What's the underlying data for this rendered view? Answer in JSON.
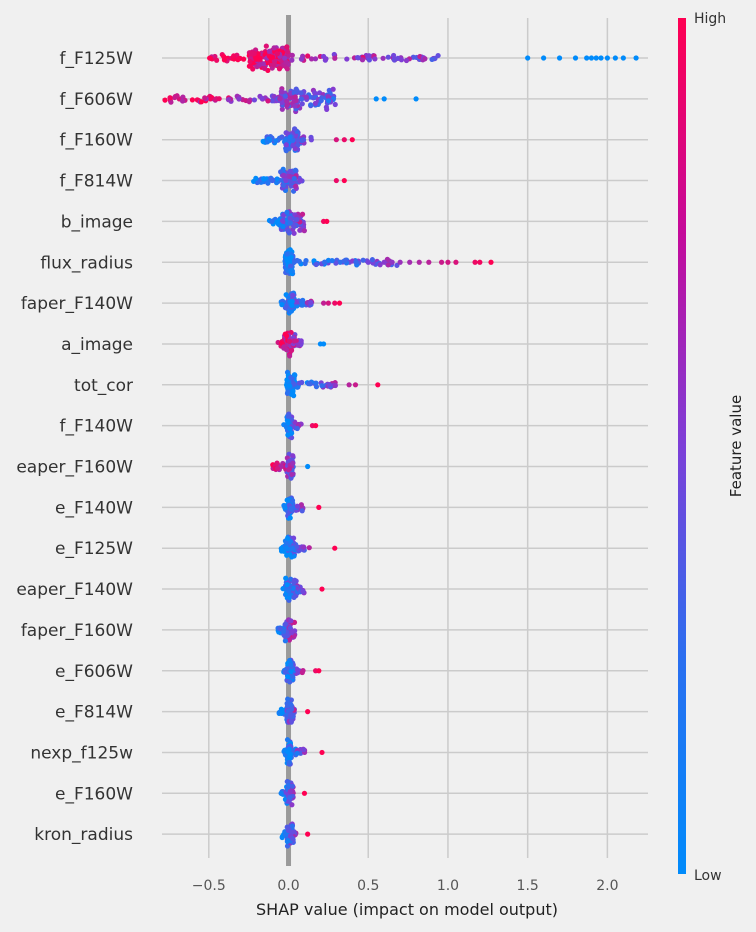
{
  "chart_data": {
    "type": "scatter",
    "subtype": "shap-beeswarm",
    "title": "",
    "xlabel": "SHAP value (impact on model output)",
    "ylabel": "",
    "xlim": [
      -0.85,
      2.33
    ],
    "xticks": [
      -0.5,
      0.0,
      0.5,
      1.0,
      1.5,
      2.0
    ],
    "xtick_labels": [
      "−0.5",
      "0.0",
      "0.5",
      "1.0",
      "1.5",
      "2.0"
    ],
    "grid": true,
    "zero_line": true,
    "colorbar": {
      "label": "Feature value",
      "high_label": "High",
      "low_label": "Low",
      "low_color": "#008bfb",
      "high_color": "#ff0052"
    },
    "features": [
      {
        "name": "f_F125W",
        "min": -0.5,
        "max": 2.18,
        "core": [
          -0.25,
          0.0
        ],
        "low_side": "high",
        "outliers": [
          1.5,
          1.6,
          1.7,
          1.8,
          1.87,
          1.9,
          1.93,
          1.96,
          2.0,
          2.05,
          2.1,
          2.18
        ]
      },
      {
        "name": "f_F606W",
        "min": -0.78,
        "max": 0.8,
        "core": [
          -0.05,
          0.3
        ],
        "low_side": "high",
        "outliers": [
          0.55,
          0.6,
          0.8
        ]
      },
      {
        "name": "f_F160W",
        "min": -0.16,
        "max": 0.4,
        "core": [
          -0.02,
          0.06
        ],
        "low_side": "low",
        "outliers": [
          0.3,
          0.35,
          0.4
        ]
      },
      {
        "name": "f_F814W",
        "min": -0.22,
        "max": 0.35,
        "core": [
          -0.05,
          0.05
        ],
        "low_side": "low",
        "outliers": [
          0.3,
          0.35
        ]
      },
      {
        "name": "b_image",
        "min": -0.12,
        "max": 0.24,
        "core": [
          -0.05,
          0.1
        ],
        "low_side": "low",
        "outliers": [
          0.22,
          0.24
        ]
      },
      {
        "name": "flux_radius",
        "min": -0.04,
        "max": 1.27,
        "core": [
          -0.02,
          0.03
        ],
        "low_side": "low",
        "outliers": [
          0.5,
          0.6,
          0.65,
          0.7,
          0.76,
          0.82,
          0.88,
          0.96,
          1.0,
          1.05,
          1.17,
          1.2,
          1.27
        ]
      },
      {
        "name": "faper_F140W",
        "min": -0.05,
        "max": 0.32,
        "core": [
          -0.02,
          0.04
        ],
        "low_side": "low",
        "outliers": [
          0.22,
          0.25,
          0.29,
          0.32
        ]
      },
      {
        "name": "a_image",
        "min": -0.07,
        "max": 0.22,
        "core": [
          -0.03,
          0.04
        ],
        "low_side": "high",
        "outliers": [
          0.2,
          0.22
        ]
      },
      {
        "name": "tot_cor",
        "min": -0.02,
        "max": 0.56,
        "core": [
          -0.01,
          0.04
        ],
        "low_side": "low",
        "outliers": [
          0.38,
          0.42,
          0.56
        ]
      },
      {
        "name": "f_F140W",
        "min": -0.03,
        "max": 0.17,
        "core": [
          -0.01,
          0.02
        ],
        "low_side": "low",
        "outliers": [
          0.15,
          0.17
        ]
      },
      {
        "name": "eaper_F160W",
        "min": -0.1,
        "max": 0.12,
        "core": [
          -0.01,
          0.03
        ],
        "low_side": "high",
        "outliers": [
          0.12
        ]
      },
      {
        "name": "e_F140W",
        "min": -0.03,
        "max": 0.19,
        "core": [
          -0.01,
          0.03
        ],
        "low_side": "low",
        "outliers": [
          0.19
        ]
      },
      {
        "name": "e_F125W",
        "min": -0.05,
        "max": 0.29,
        "core": [
          -0.02,
          0.04
        ],
        "low_side": "low",
        "outliers": [
          0.29
        ]
      },
      {
        "name": "eaper_F140W",
        "min": -0.04,
        "max": 0.21,
        "core": [
          -0.02,
          0.06
        ],
        "low_side": "low",
        "outliers": [
          0.21
        ]
      },
      {
        "name": "faper_F160W",
        "min": -0.07,
        "max": 0.08,
        "core": [
          -0.03,
          0.04
        ],
        "low_side": "low",
        "outliers": []
      },
      {
        "name": "e_F606W",
        "min": -0.03,
        "max": 0.19,
        "core": [
          -0.01,
          0.03
        ],
        "low_side": "low",
        "outliers": [
          0.17,
          0.19
        ]
      },
      {
        "name": "e_F814W",
        "min": -0.06,
        "max": 0.12,
        "core": [
          -0.01,
          0.03
        ],
        "low_side": "low",
        "outliers": [
          0.12
        ]
      },
      {
        "name": "nexp_f125w",
        "min": -0.03,
        "max": 0.21,
        "core": [
          -0.01,
          0.02
        ],
        "low_side": "low",
        "outliers": [
          0.21
        ]
      },
      {
        "name": "e_F160W",
        "min": -0.05,
        "max": 0.1,
        "core": [
          -0.02,
          0.03
        ],
        "low_side": "low",
        "outliers": [
          0.1
        ]
      },
      {
        "name": "kron_radius",
        "min": -0.04,
        "max": 0.12,
        "core": [
          -0.01,
          0.03
        ],
        "low_side": "low",
        "outliers": [
          0.12
        ]
      }
    ]
  }
}
